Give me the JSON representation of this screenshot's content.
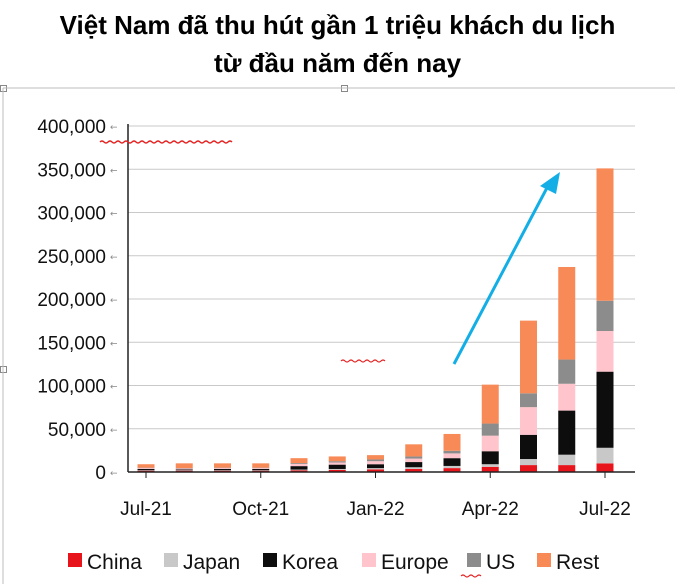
{
  "title": {
    "line1": "Việt Nam đã thu hút gần 1 triệu khách du lịch",
    "line2": "từ đầu năm đến nay"
  },
  "chart_data": {
    "type": "bar",
    "stacked": true,
    "title": "Việt Nam đã thu hút gần 1 triệu khách du lịch từ đầu năm đến nay",
    "xlabel": "",
    "ylabel": "",
    "ylim": [
      0,
      400000
    ],
    "yticks": [
      "0",
      "50,000",
      "100,000",
      "150,000",
      "200,000",
      "250,000",
      "300,000",
      "350,000",
      "400,000"
    ],
    "categories": [
      "Jul-21",
      "Aug-21",
      "Sep-21",
      "Oct-21",
      "Nov-21",
      "Dec-21",
      "Jan-22",
      "Feb-22",
      "Mar-22",
      "Apr-22",
      "May-22",
      "Jun-22",
      "Jul-22"
    ],
    "xtick_labels": [
      "Jul-21",
      "Oct-21",
      "Jan-22",
      "Apr-22",
      "Jul-22"
    ],
    "series": [
      {
        "name": "China",
        "color": "#e8141b",
        "values": [
          1500,
          1500,
          1500,
          1500,
          2000,
          2500,
          3000,
          3500,
          4500,
          6000,
          8000,
          8000,
          10000
        ]
      },
      {
        "name": "Japan",
        "color": "#c8c8c8",
        "values": [
          500,
          500,
          500,
          500,
          800,
          1000,
          1500,
          2000,
          2500,
          3000,
          7000,
          12000,
          18000
        ]
      },
      {
        "name": "Korea",
        "color": "#0d0d0d",
        "values": [
          1500,
          1000,
          1500,
          1500,
          4000,
          5000,
          4500,
          6000,
          9000,
          15000,
          28000,
          51000,
          88000
        ]
      },
      {
        "name": "Europe",
        "color": "#ffc4cc",
        "values": [
          1000,
          1000,
          1000,
          1000,
          2500,
          2500,
          3500,
          4000,
          5500,
          18000,
          32000,
          31000,
          47000
        ]
      },
      {
        "name": "US",
        "color": "#8c8c8c",
        "values": [
          500,
          500,
          500,
          500,
          1000,
          1500,
          2000,
          2500,
          3000,
          14000,
          16000,
          28000,
          35000
        ]
      },
      {
        "name": "Rest",
        "color": "#f88a58",
        "values": [
          4000,
          5500,
          5000,
          5000,
          5700,
          5500,
          5000,
          14000,
          19500,
          45000,
          84000,
          107000,
          153000
        ]
      }
    ],
    "legend": {
      "position": "bottom",
      "labels": [
        "China",
        "Japan",
        "Korea",
        "Europe",
        "US",
        "Rest"
      ]
    },
    "annotations": [
      {
        "type": "arrow",
        "color": "#13aee6",
        "direction": "up-right"
      }
    ],
    "grid": true
  }
}
